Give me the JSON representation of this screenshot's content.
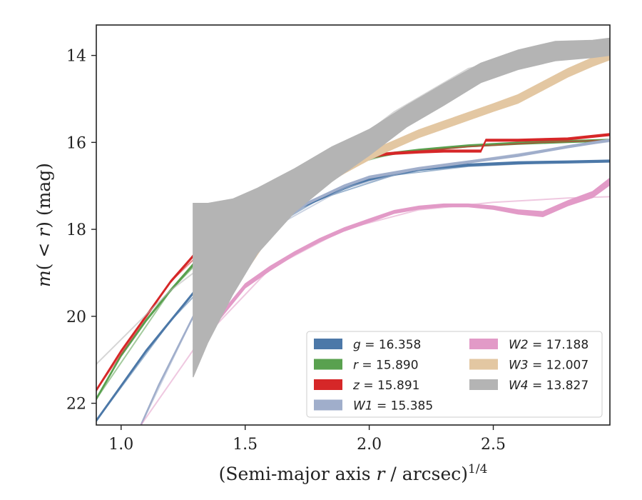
{
  "chart_data": {
    "type": "area",
    "xlabel": "(Semi-major axis r / arcsec)^{1/4}",
    "ylabel": "m(< r) (mag)",
    "xlim": [
      0.9,
      2.97
    ],
    "ylim": [
      22.5,
      13.3
    ],
    "y_inverted": true,
    "x_ticks": [
      "1.0",
      "1.5",
      "2.0",
      "2.5"
    ],
    "y_ticks": [
      "14",
      "16",
      "18",
      "20",
      "22"
    ],
    "grid": false,
    "legend_position": "lower-right",
    "series": [
      {
        "name": "g = 16.358",
        "legend_var": "g",
        "legend_value": "= 16.358",
        "color": "#4c78a8",
        "width": 0.05,
        "x": [
          0.9,
          1.0,
          1.1,
          1.2,
          1.3,
          1.4,
          1.5,
          1.6,
          1.7,
          1.8,
          1.9,
          2.0,
          2.2,
          2.4,
          2.6,
          2.8,
          2.97
        ],
        "y": [
          22.4,
          21.6,
          20.8,
          20.1,
          19.4,
          18.8,
          18.3,
          17.9,
          17.55,
          17.3,
          17.05,
          16.85,
          16.62,
          16.52,
          16.47,
          16.45,
          16.43
        ],
        "model_x": [
          0.9,
          1.2,
          1.5,
          1.8,
          2.1,
          2.4,
          2.7,
          2.97
        ],
        "model_y": [
          22.4,
          20.1,
          18.3,
          17.3,
          16.75,
          16.55,
          16.47,
          16.43
        ]
      },
      {
        "name": "r = 15.890",
        "legend_var": "r",
        "legend_value": "= 15.890",
        "color": "#59a14f",
        "width": 0.05,
        "x": [
          0.9,
          1.0,
          1.1,
          1.2,
          1.3,
          1.4,
          1.5,
          1.6,
          1.7,
          1.8,
          1.9,
          2.0,
          2.1,
          2.2,
          2.4,
          2.6,
          2.8,
          2.97
        ],
        "y": [
          21.9,
          20.9,
          20.1,
          19.4,
          18.75,
          18.15,
          17.65,
          17.25,
          16.95,
          16.7,
          16.5,
          16.35,
          16.25,
          16.18,
          16.08,
          16.02,
          15.98,
          15.95
        ],
        "model_x": [
          0.9,
          1.2,
          1.5,
          1.8,
          2.1,
          2.4,
          2.7,
          2.97
        ],
        "model_y": [
          21.9,
          19.4,
          17.65,
          16.7,
          16.25,
          16.08,
          16.0,
          15.95
        ]
      },
      {
        "name": "z = 15.891",
        "legend_var": "z",
        "legend_value": "= 15.891",
        "color": "#d62728",
        "width": 0.05,
        "x": [
          0.9,
          1.0,
          1.1,
          1.2,
          1.3,
          1.4,
          1.5,
          1.6,
          1.7,
          1.8,
          1.9,
          2.0,
          2.1,
          2.2,
          2.3,
          2.45,
          2.47,
          2.6,
          2.8,
          2.97
        ],
        "y": [
          21.7,
          20.8,
          20.0,
          19.2,
          18.55,
          18.0,
          17.55,
          17.15,
          16.85,
          16.6,
          16.42,
          16.3,
          16.25,
          16.22,
          16.2,
          16.2,
          15.95,
          15.95,
          15.92,
          15.82
        ],
        "model_x": [
          0.9,
          1.2,
          1.5,
          1.8,
          2.1,
          2.4,
          2.7,
          2.97
        ],
        "model_y": [
          21.7,
          19.2,
          17.55,
          16.6,
          16.25,
          16.1,
          16.0,
          15.95
        ]
      },
      {
        "name": "W1 = 15.385",
        "legend_var": "W1",
        "legend_value": "= 15.385",
        "color": "#a0aecb",
        "width": 0.05,
        "x": [
          1.08,
          1.15,
          1.3,
          1.45,
          1.6,
          1.75,
          1.9,
          2.0,
          2.2,
          2.4,
          2.6,
          2.8,
          2.97
        ],
        "y": [
          22.5,
          21.6,
          19.9,
          18.8,
          18.0,
          17.4,
          17.0,
          16.8,
          16.6,
          16.45,
          16.3,
          16.1,
          15.95
        ],
        "model_x": [
          1.08,
          1.3,
          1.6,
          1.9,
          2.2,
          2.5,
          2.8,
          2.97
        ],
        "model_y": [
          22.5,
          19.9,
          18.0,
          17.05,
          16.6,
          16.35,
          16.1,
          15.98
        ]
      },
      {
        "name": "W2 = 17.188",
        "legend_var": "W2",
        "legend_value": "= 17.188",
        "color": "#e29ac7",
        "x": [
          1.3,
          1.4,
          1.5,
          1.6,
          1.7,
          1.8,
          1.9,
          2.0,
          2.1,
          2.2,
          2.3,
          2.4,
          2.5,
          2.6,
          2.7,
          2.8,
          2.9,
          2.97
        ],
        "y": [
          20.7,
          20.0,
          19.3,
          18.9,
          18.55,
          18.25,
          18.0,
          17.8,
          17.6,
          17.5,
          17.45,
          17.45,
          17.5,
          17.6,
          17.65,
          17.4,
          17.2,
          16.9
        ],
        "width": [
          0.1,
          0.1,
          0.1,
          0.1,
          0.08,
          0.08,
          0.08,
          0.08,
          0.07,
          0.07,
          0.07,
          0.07,
          0.08,
          0.1,
          0.12,
          0.12,
          0.14,
          0.16
        ],
        "model_x": [
          1.08,
          1.3,
          1.6,
          1.9,
          2.2,
          2.5,
          2.8,
          2.97
        ],
        "model_y": [
          22.5,
          20.7,
          18.9,
          18.0,
          17.55,
          17.38,
          17.28,
          17.25
        ]
      },
      {
        "name": "W3 = 12.007",
        "legend_var": "W3",
        "legend_value": "= 12.007",
        "color": "#e3c7a2",
        "x": [
          1.5,
          1.6,
          1.7,
          1.8,
          1.9,
          2.0,
          2.1,
          2.2,
          2.3,
          2.4,
          2.5,
          2.6,
          2.7,
          2.8,
          2.9,
          2.97
        ],
        "y": [
          18.7,
          17.9,
          17.3,
          16.9,
          16.6,
          16.3,
          16.05,
          15.8,
          15.6,
          15.4,
          15.2,
          15.0,
          14.7,
          14.4,
          14.15,
          14.0
        ],
        "width": [
          0.6,
          0.5,
          0.4,
          0.3,
          0.22,
          0.2,
          0.18,
          0.18,
          0.18,
          0.18,
          0.18,
          0.2,
          0.2,
          0.2,
          0.2,
          0.2
        ],
        "model_x": [
          1.5,
          1.8,
          2.1,
          2.4,
          2.7,
          2.97
        ],
        "model_y": [
          18.7,
          16.9,
          16.05,
          15.4,
          14.7,
          14.0
        ]
      },
      {
        "name": "W4 = 13.827",
        "legend_var": "W4",
        "legend_value": "= 13.827",
        "color": "#b4b4b4",
        "x": [
          1.29,
          1.35,
          1.45,
          1.55,
          1.7,
          1.85,
          2.0,
          2.15,
          2.3,
          2.45,
          2.6,
          2.75,
          2.9,
          2.97
        ],
        "y": [
          19.4,
          19.0,
          18.4,
          17.8,
          17.1,
          16.5,
          16.0,
          15.4,
          14.9,
          14.4,
          14.1,
          13.9,
          13.85,
          13.8
        ],
        "width": [
          4.0,
          3.2,
          2.2,
          1.5,
          1.0,
          0.8,
          0.6,
          0.5,
          0.5,
          0.45,
          0.45,
          0.45,
          0.4,
          0.4
        ],
        "model_x": [
          0.9,
          1.2,
          1.5,
          1.8,
          2.1,
          2.4,
          2.7,
          2.97
        ],
        "model_y": [
          21.1,
          19.4,
          18.1,
          16.6,
          15.3,
          14.3,
          13.9,
          13.8
        ]
      }
    ]
  }
}
